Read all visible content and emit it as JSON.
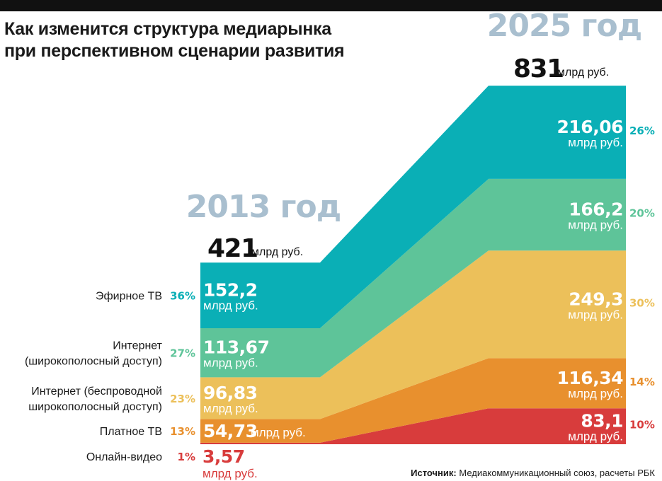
{
  "title": {
    "line1": "Как изменится структура медиарынка",
    "line2": "при перспективном сценарии развития"
  },
  "source": {
    "label": "Источник:",
    "text": "Медиакоммуникационный союз, расчеты РБК"
  },
  "colors": {
    "ether_tv": "#0aafb6",
    "broadband": "#5ec499",
    "wireless": "#ecc05a",
    "pay_tv": "#e8902e",
    "online_video": "#d83c3c",
    "year_text": "#a9bfcf"
  },
  "chart_data": {
    "type": "area",
    "unit": "млрд руб.",
    "periods": [
      {
        "year": "2013 год",
        "total": "421",
        "unit": "млрд руб."
      },
      {
        "year": "2025 год",
        "total": "831",
        "unit": "млрд руб."
      }
    ],
    "series": [
      {
        "key": "ether_tv",
        "name": "Эфирное ТВ",
        "values": [
          152.2,
          216.06
        ],
        "labels": [
          "152,2",
          "216,06"
        ],
        "shares": [
          "36%",
          "26%"
        ]
      },
      {
        "key": "broadband",
        "name": "Интернет (широкополосный доступ)",
        "name_lines": [
          "Интернет",
          "(широкополосный доступ)"
        ],
        "values": [
          113.67,
          166.2
        ],
        "labels": [
          "113,67",
          "166,2"
        ],
        "shares": [
          "27%",
          "20%"
        ]
      },
      {
        "key": "wireless",
        "name": "Интернет (беспроводной широкополосный доступ)",
        "name_lines": [
          "Интернет (беспроводной",
          "широкополосный доступ)"
        ],
        "values": [
          96.83,
          249.3
        ],
        "labels": [
          "96,83",
          "249,3"
        ],
        "shares": [
          "23%",
          "30%"
        ]
      },
      {
        "key": "pay_tv",
        "name": "Платное ТВ",
        "values": [
          54.73,
          116.34
        ],
        "labels": [
          "54,73",
          "116,34"
        ],
        "shares": [
          "13%",
          "14%"
        ]
      },
      {
        "key": "online_video",
        "name": "Онлайн-видео",
        "values": [
          3.57,
          83.1
        ],
        "labels": [
          "3,57",
          "83,1"
        ],
        "shares": [
          "1%",
          "10%"
        ]
      }
    ]
  }
}
